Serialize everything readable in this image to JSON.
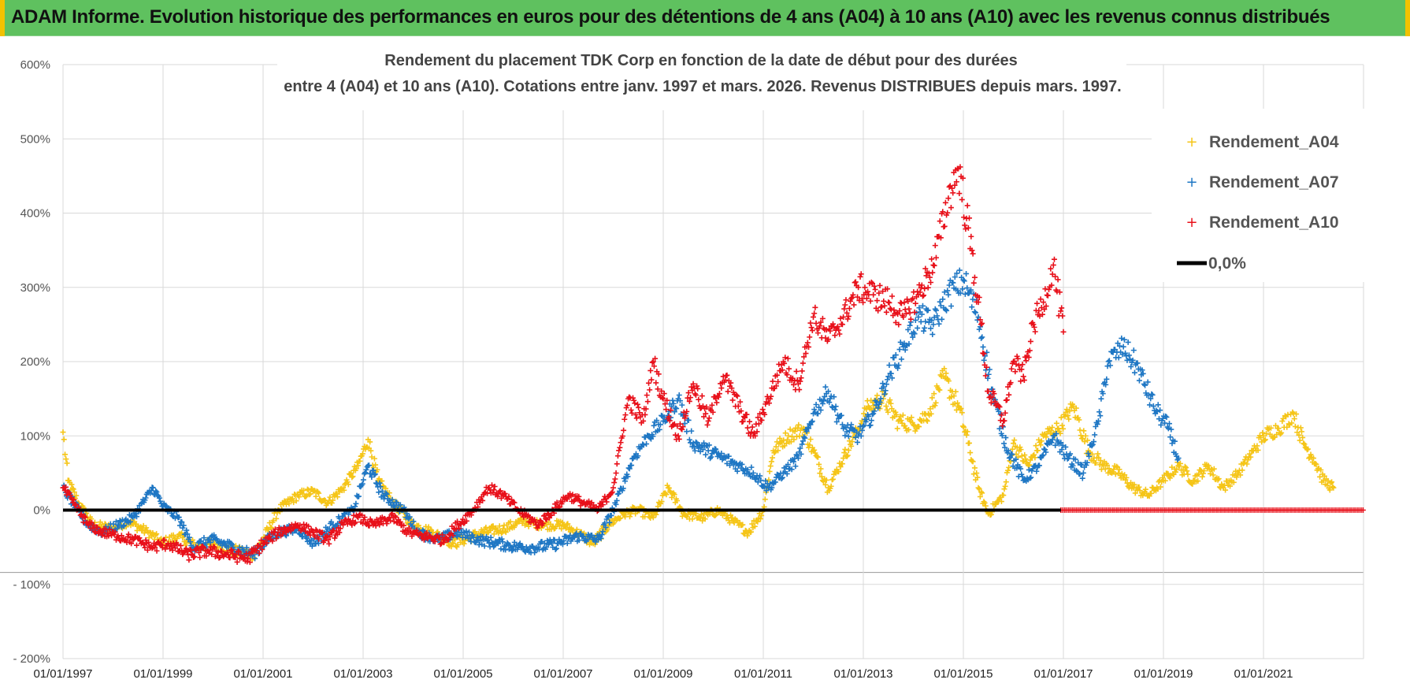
{
  "banner": {
    "title": "ADAM Informe. Evolution historique des performances en euros pour des détentions de 4 ans (A04) à 10 ans (A10) avec les revenus connus distribués"
  },
  "colors": {
    "banner_bg": "#5fc15f",
    "A04": "#f5c518",
    "A07": "#1f77c4",
    "A10": "#e8101a",
    "zero_line": "#000000",
    "grid": "#d9d9d9"
  },
  "chart_data": {
    "type": "scatter",
    "title_lines": [
      "Rendement du placement TDK Corp en fonction de la date de début pour des durées",
      "entre 4 (A04) et 10 ans (A10). Cotations entre janv. 1997 et mars. 2026. Revenus DISTRIBUES depuis mars. 1997."
    ],
    "x_range": [
      1997.0,
      2023.0
    ],
    "ylim": [
      -200,
      600
    ],
    "y_ticks": [
      {
        "value": 600,
        "label": "600%"
      },
      {
        "value": 500,
        "label": "500%"
      },
      {
        "value": 400,
        "label": "400%"
      },
      {
        "value": 300,
        "label": "300%"
      },
      {
        "value": 200,
        "label": "200%"
      },
      {
        "value": 100,
        "label": "100%"
      },
      {
        "value": 0,
        "label": "0%"
      },
      {
        "value": -100,
        "label": "- 100%"
      },
      {
        "value": -200,
        "label": "- 200%"
      }
    ],
    "x_ticks": [
      {
        "value": 1997,
        "label": "01/01/1997"
      },
      {
        "value": 1999,
        "label": "01/01/1999"
      },
      {
        "value": 2001,
        "label": "01/01/2001"
      },
      {
        "value": 2003,
        "label": "01/01/2003"
      },
      {
        "value": 2005,
        "label": "01/01/2005"
      },
      {
        "value": 2007,
        "label": "01/01/2007"
      },
      {
        "value": 2009,
        "label": "01/01/2009"
      },
      {
        "value": 2011,
        "label": "01/01/2011"
      },
      {
        "value": 2013,
        "label": "01/01/2013"
      },
      {
        "value": 2015,
        "label": "01/01/2015"
      },
      {
        "value": 2017,
        "label": "01/01/2017"
      },
      {
        "value": 2019,
        "label": "01/01/2019"
      },
      {
        "value": 2021,
        "label": "01/01/2021"
      }
    ],
    "legend": [
      {
        "key": "A04",
        "label": "Rendement_A04"
      },
      {
        "key": "A07",
        "label": "Rendement_A07"
      },
      {
        "key": "A10",
        "label": "Rendement_A10"
      },
      {
        "key": "zero",
        "label": "0,0%"
      }
    ],
    "series": [
      {
        "name": "Rendement_A04",
        "key": "A04",
        "x": [
          1997.0,
          1997.1,
          1997.3,
          1997.6,
          1998.0,
          1998.3,
          1998.7,
          1999.0,
          1999.3,
          1999.7,
          2000.0,
          2000.4,
          2000.8,
          2001.0,
          2001.3,
          2001.7,
          2002.0,
          2002.3,
          2002.6,
          2002.9,
          2003.1,
          2003.3,
          2003.6,
          2004.0,
          2004.4,
          2004.8,
          2005.0,
          2005.4,
          2005.8,
          2006.2,
          2006.6,
          2007.0,
          2007.4,
          2007.6,
          2007.9,
          2008.2,
          2008.5,
          2008.8,
          2009.1,
          2009.4,
          2009.8,
          2010.1,
          2010.4,
          2010.7,
          2011.0,
          2011.2,
          2011.5,
          2011.8,
          2012.0,
          2012.3,
          2012.6,
          2012.9,
          2013.1,
          2013.4,
          2013.7,
          2014.0,
          2014.3,
          2014.6,
          2014.9,
          2015.1,
          2015.3,
          2015.5,
          2015.8,
          2016.0,
          2016.3,
          2016.6,
          2016.9,
          2017.2,
          2017.5,
          2017.8,
          2018.1,
          2018.4,
          2018.7,
          2019.0,
          2019.3,
          2019.6,
          2019.9,
          2020.2,
          2020.5,
          2020.8,
          2021.0,
          2021.3,
          2021.6,
          2021.8,
          2022.0,
          2022.2,
          2022.4
        ],
        "y": [
          105,
          40,
          10,
          -20,
          -25,
          -15,
          -30,
          -45,
          -35,
          -50,
          -45,
          -55,
          -60,
          -40,
          0,
          20,
          25,
          10,
          30,
          60,
          95,
          40,
          10,
          -20,
          -30,
          -45,
          -40,
          -30,
          -25,
          -15,
          -20,
          -20,
          -35,
          -45,
          -20,
          -5,
          0,
          -10,
          30,
          -5,
          -10,
          0,
          -15,
          -30,
          0,
          80,
          100,
          110,
          80,
          30,
          70,
          110,
          140,
          150,
          120,
          115,
          130,
          180,
          140,
          90,
          30,
          -5,
          20,
          90,
          60,
          100,
          110,
          140,
          80,
          60,
          50,
          30,
          20,
          40,
          60,
          40,
          60,
          30,
          50,
          80,
          100,
          110,
          130,
          90,
          70,
          40,
          30
        ]
      },
      {
        "name": "Rendement_A07",
        "key": "A07",
        "x": [
          1997.0,
          1997.2,
          1997.5,
          1997.8,
          1998.1,
          1998.4,
          1998.8,
          1999.0,
          1999.3,
          1999.6,
          2000.0,
          2000.4,
          2000.8,
          2001.0,
          2001.3,
          2001.7,
          2002.0,
          2002.4,
          2002.8,
          2003.1,
          2003.4,
          2003.8,
          2004.1,
          2004.5,
          2004.9,
          2005.3,
          2005.7,
          2006.1,
          2006.5,
          2006.9,
          2007.3,
          2007.7,
          2008.0,
          2008.4,
          2008.7,
          2009.0,
          2009.3,
          2009.6,
          2009.9,
          2010.2,
          2010.5,
          2010.8,
          2011.1,
          2011.4,
          2011.7,
          2012.0,
          2012.3,
          2012.6,
          2012.9,
          2013.2,
          2013.5,
          2013.8,
          2014.1,
          2014.4,
          2014.7,
          2015.0,
          2015.3,
          2015.6,
          2015.9,
          2016.2,
          2016.5,
          2016.8,
          2017.1,
          2017.4,
          2017.7,
          2017.9,
          2018.2,
          2018.5,
          2018.8,
          2019.1,
          2019.3
        ],
        "y": [
          30,
          10,
          -20,
          -30,
          -20,
          -10,
          30,
          5,
          -10,
          -50,
          -40,
          -50,
          -60,
          -45,
          -30,
          -25,
          -45,
          -20,
          0,
          60,
          20,
          0,
          -30,
          -40,
          -30,
          -40,
          -45,
          -50,
          -50,
          -45,
          -35,
          -40,
          0,
          70,
          100,
          120,
          150,
          90,
          80,
          70,
          60,
          50,
          30,
          50,
          70,
          130,
          160,
          110,
          100,
          130,
          180,
          220,
          260,
          250,
          290,
          310,
          260,
          150,
          80,
          40,
          60,
          100,
          70,
          50,
          120,
          200,
          220,
          190,
          140,
          110,
          70
        ]
      },
      {
        "name": "Rendement_A10",
        "key": "A10",
        "x": [
          1997.0,
          1997.2,
          1997.5,
          1997.8,
          1998.1,
          1998.4,
          1998.8,
          1999.1,
          1999.5,
          1999.9,
          2000.3,
          2000.7,
          2001.0,
          2001.3,
          2001.7,
          2002.0,
          2002.3,
          2002.6,
          2002.9,
          2003.2,
          2003.6,
          2003.9,
          2004.2,
          2004.6,
          2004.9,
          2005.2,
          2005.5,
          2005.8,
          2006.1,
          2006.5,
          2006.8,
          2007.1,
          2007.4,
          2007.7,
          2008.0,
          2008.3,
          2008.6,
          2008.8,
          2009.0,
          2009.3,
          2009.6,
          2009.9,
          2010.2,
          2010.5,
          2010.8,
          2011.1,
          2011.4,
          2011.7,
          2012.0,
          2012.3,
          2012.6,
          2012.9,
          2013.2,
          2013.5,
          2013.8,
          2014.1,
          2014.4,
          2014.7,
          2014.9,
          2015.1,
          2015.3,
          2015.5,
          2015.8,
          2016.0,
          2016.2,
          2016.4,
          2016.6,
          2016.8,
          2017.0
        ],
        "y": [
          30,
          10,
          -20,
          -30,
          -35,
          -40,
          -50,
          -45,
          -60,
          -55,
          -60,
          -65,
          -45,
          -30,
          -20,
          -30,
          -40,
          -20,
          -10,
          -20,
          -10,
          -30,
          -35,
          -40,
          -20,
          0,
          30,
          20,
          0,
          -20,
          0,
          20,
          10,
          0,
          30,
          150,
          120,
          200,
          150,
          100,
          170,
          120,
          180,
          140,
          100,
          150,
          200,
          170,
          260,
          230,
          260,
          300,
          290,
          280,
          260,
          290,
          330,
          420,
          460,
          380,
          280,
          160,
          120,
          200,
          180,
          250,
          280,
          330,
          240
        ]
      }
    ],
    "zero_fill_A10": {
      "start_x": 2016.95,
      "end_x": 2023.0,
      "value": 0
    }
  }
}
